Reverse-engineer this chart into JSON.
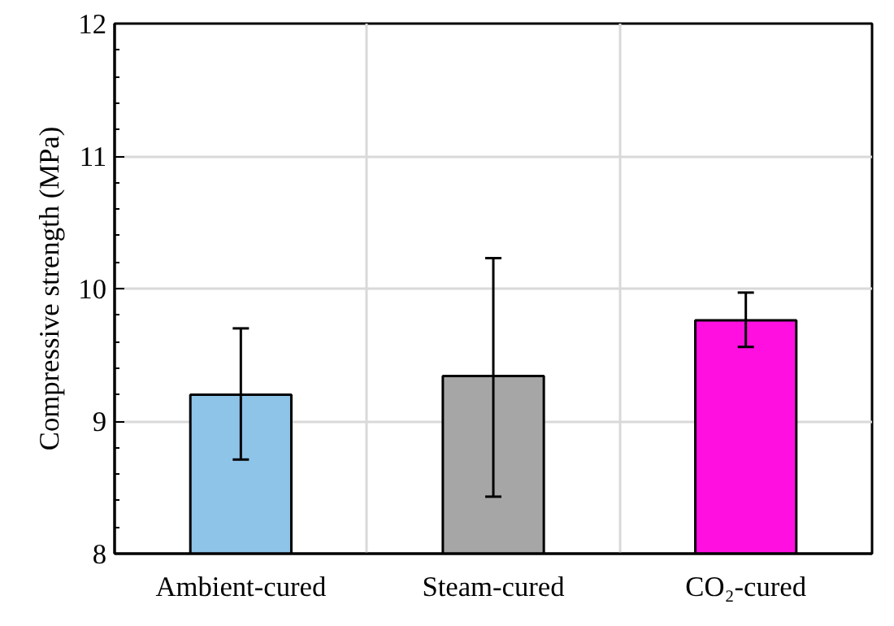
{
  "chart_data": {
    "type": "bar",
    "categories": [
      "Ambient-cured",
      "Steam-cured",
      "CO₂-cured"
    ],
    "values": [
      9.2,
      9.34,
      9.76
    ],
    "colors": [
      "#8ec4e8",
      "#a6a6a6",
      "#ff10e0"
    ],
    "errors": [
      [
        8.71,
        9.7
      ],
      [
        8.43,
        10.23
      ],
      [
        9.56,
        9.97
      ]
    ],
    "ylabel": "Compressive strength (MPa)",
    "ylim": [
      8,
      12
    ],
    "yticks": [
      8,
      9,
      10,
      11,
      12
    ],
    "grid": true
  }
}
